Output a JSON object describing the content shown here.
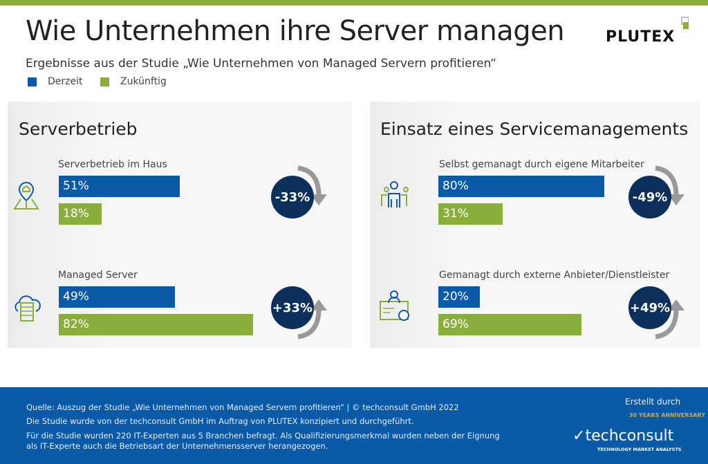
{
  "header": {
    "title": "Wie Unternehmen ihre Server managen",
    "subtitle": "Ergebnisse aus der Studie „Wie Unternehmen von Managed Servern profitieren“",
    "logo_text": "PLUTEX"
  },
  "legend": [
    {
      "label": "Derzeit",
      "color": "#0b5aa8"
    },
    {
      "label": "Zukünftig",
      "color": "#8aae3b"
    }
  ],
  "chart_data": [
    {
      "type": "bar",
      "title": "Serverbetrieb",
      "categories": [
        "Serverbetrieb im Haus",
        "Managed Server"
      ],
      "series": [
        {
          "name": "Derzeit",
          "values": [
            51,
            49
          ]
        },
        {
          "name": "Zukünftig",
          "values": [
            18,
            82
          ]
        }
      ],
      "value_labels": [
        [
          "51%",
          "18%"
        ],
        [
          "49%",
          "82%"
        ]
      ],
      "changes": [
        "-33%",
        "+33%"
      ],
      "icons": [
        "home-map-pin-icon",
        "cloud-server-icon"
      ]
    },
    {
      "type": "bar",
      "title": "Einsatz eines Servicemanagements",
      "categories": [
        "Selbst gemanagt durch eigene Mitarbeiter",
        "Gemanagt durch externe Anbieter/Dienstleister"
      ],
      "series": [
        {
          "name": "Derzeit",
          "values": [
            80,
            20
          ]
        },
        {
          "name": "Zukünftig",
          "values": [
            31,
            69
          ]
        }
      ],
      "value_labels": [
        [
          "80%",
          "31%"
        ],
        [
          "20%",
          "69%"
        ]
      ],
      "changes": [
        "-49%",
        "+49%"
      ],
      "icons": [
        "team-icon",
        "certificate-icon"
      ]
    }
  ],
  "footer": {
    "source": "Quelle: Auszug der Studie „Wie Unternehmen von Managed Servern profitieren“ | © techconsult GmbH 2022",
    "line2": "Die Studie wurde von der techconsult GmbH im Auftrag von PLUTEX konzipiert und durchgeführt.",
    "line3": "Für die Studie wurden 220 IT-Experten aus 5 Branchen befragt. Als Qualifizierungsmerkmal wurden neben der Eignung",
    "line4": "als IT-Experte auch die Betriebsart der Unternehmensserver herangezogen.",
    "created_by": "Erstellt durch",
    "anniversary": "30 YEARS ANNIVERSARY",
    "brand": "techconsult",
    "tagline": "TECHNOLOGY MARKET ANALYSTS"
  }
}
